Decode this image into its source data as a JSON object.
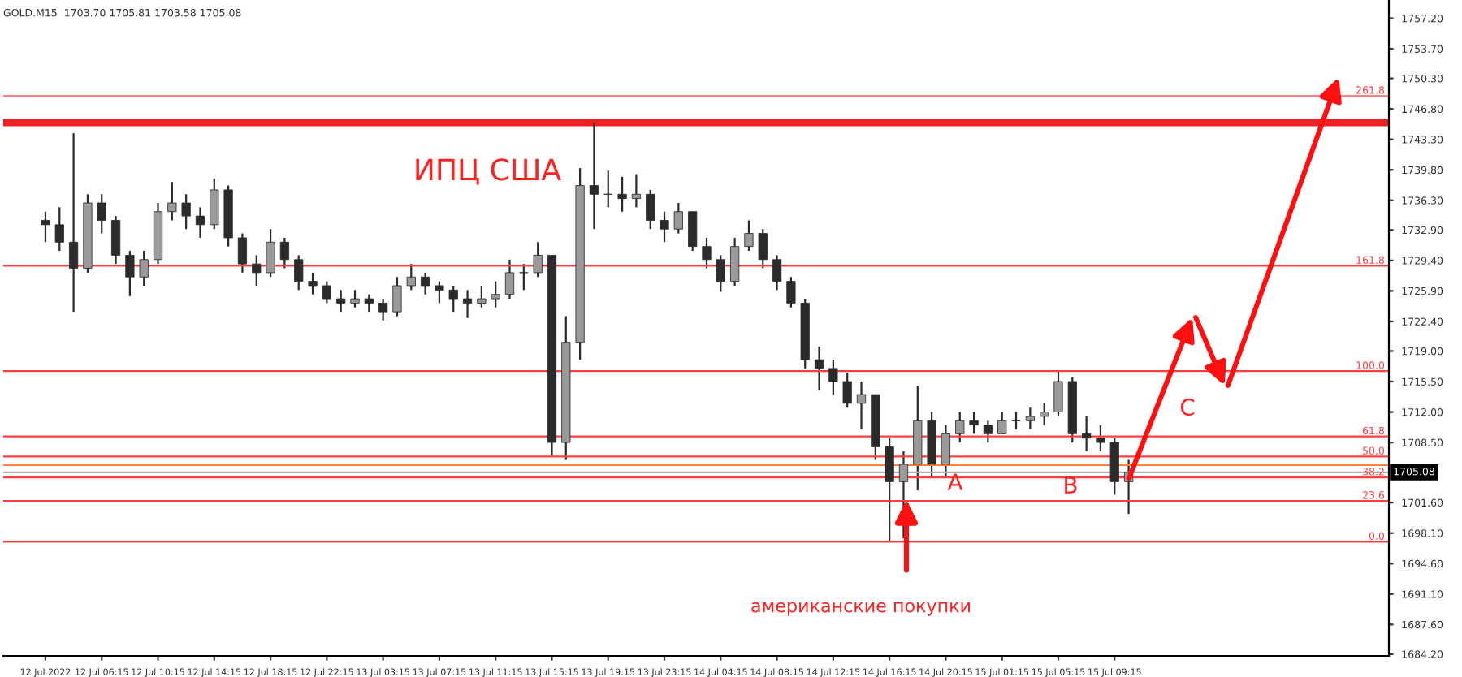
{
  "chart_data": {
    "type": "candlestick",
    "title": "GOLD.M15  1703.70 1705.81 1703.58 1705.08",
    "categories": [
      "12 Jul 2022",
      null,
      null,
      null,
      "12 Jul 06:15",
      null,
      null,
      null,
      "12 Jul 10:15",
      null,
      null,
      null,
      "12 Jul 14:15",
      null,
      null,
      null,
      "12 Jul 18:15",
      null,
      null,
      null,
      "12 Jul 22:15",
      null,
      null,
      null,
      "13 Jul 03:15",
      null,
      null,
      null,
      "13 Jul 07:15",
      null,
      null,
      null,
      "13 Jul 11:15",
      null,
      null,
      null,
      "13 Jul 15:15",
      null,
      null,
      null,
      "13 Jul 19:15",
      null,
      null,
      null,
      "13 Jul 23:15",
      null,
      null,
      null,
      "14 Jul 04:15",
      null,
      null,
      null,
      "14 Jul 08:15",
      null,
      null,
      null,
      "14 Jul 12:15",
      null,
      null,
      null,
      "14 Jul 16:15",
      null,
      null,
      null,
      "14 Jul 20:15",
      null,
      null,
      null,
      "15 Jul 01:15",
      null,
      null,
      null,
      "15 Jul 05:15",
      null,
      null,
      null,
      "15 Jul 09:15",
      null,
      null,
      null,
      null,
      null,
      null,
      null,
      null,
      null,
      null,
      null,
      null,
      null,
      null,
      null,
      null,
      null,
      null,
      null
    ],
    "color": "#2b2b2b",
    "ohlc": [
      [
        1734,
        1735,
        1731.5,
        1733.5
      ],
      [
        1733.5,
        1735.5,
        1730.5,
        1731.5
      ],
      [
        1731.5,
        1744,
        1723.5,
        1728.5
      ],
      [
        1728.5,
        1737,
        1728,
        1736
      ],
      [
        1736,
        1737,
        1732.5,
        1734
      ],
      [
        1734,
        1734.5,
        1729,
        1730
      ],
      [
        1730,
        1730.5,
        1725.3,
        1727.5
      ],
      [
        1727.5,
        1730.5,
        1726.5,
        1729.5
      ],
      [
        1729.5,
        1736,
        1729,
        1735
      ],
      [
        1735,
        1738.4,
        1734,
        1736
      ],
      [
        1736,
        1737,
        1733,
        1734.5
      ],
      [
        1734.5,
        1735.5,
        1732,
        1733.5
      ],
      [
        1733.5,
        1738.8,
        1733,
        1737.5
      ],
      [
        1737.5,
        1738,
        1731,
        1732
      ],
      [
        1732,
        1732.5,
        1728,
        1729
      ],
      [
        1729,
        1730,
        1726.5,
        1728
      ],
      [
        1728,
        1733,
        1727.5,
        1731.5
      ],
      [
        1731.5,
        1732,
        1728.5,
        1729.5
      ],
      [
        1729.5,
        1730,
        1726,
        1727
      ],
      [
        1727,
        1728,
        1725.5,
        1726.5
      ],
      [
        1726.5,
        1727,
        1724.5,
        1725
      ],
      [
        1725,
        1726,
        1723.5,
        1724.5
      ],
      [
        1724.5,
        1726,
        1724,
        1725
      ],
      [
        1725,
        1725.5,
        1723.5,
        1724.5
      ],
      [
        1724.5,
        1725,
        1722.5,
        1723.5
      ],
      [
        1723.5,
        1727.5,
        1723,
        1726.5
      ],
      [
        1726.5,
        1729,
        1726,
        1727.5
      ],
      [
        1727.5,
        1728,
        1725.5,
        1726.5
      ],
      [
        1726.5,
        1727,
        1724.5,
        1726
      ],
      [
        1726,
        1726.5,
        1723.5,
        1725
      ],
      [
        1725,
        1726,
        1722.8,
        1724.5
      ],
      [
        1724.5,
        1726.5,
        1724,
        1725
      ],
      [
        1725,
        1727,
        1724,
        1725.5
      ],
      [
        1725.5,
        1729.5,
        1725,
        1728
      ],
      [
        1728,
        1729,
        1726,
        1728
      ],
      [
        1728,
        1731.5,
        1727.5,
        1730
      ],
      [
        1730,
        1730,
        1707,
        1708.5
      ],
      [
        1708.5,
        1723,
        1706.5,
        1720
      ],
      [
        1720,
        1740,
        1718,
        1738
      ],
      [
        1738,
        1745.2,
        1733,
        1737
      ],
      [
        1737,
        1739.7,
        1735.5,
        1737
      ],
      [
        1737,
        1739,
        1735,
        1736.5
      ],
      [
        1736.5,
        1739.3,
        1735.5,
        1737
      ],
      [
        1737,
        1737.5,
        1733,
        1734
      ],
      [
        1734,
        1735,
        1731.5,
        1733
      ],
      [
        1733,
        1736,
        1732.5,
        1735
      ],
      [
        1735,
        1735,
        1730.5,
        1731
      ],
      [
        1731,
        1732,
        1728.5,
        1729.5
      ],
      [
        1729.5,
        1730,
        1725.8,
        1727
      ],
      [
        1727,
        1732,
        1726.5,
        1731
      ],
      [
        1731,
        1734,
        1730.5,
        1732.5
      ],
      [
        1732.5,
        1733,
        1728.5,
        1729.5
      ],
      [
        1729.5,
        1730,
        1726,
        1727
      ],
      [
        1727,
        1727.5,
        1724,
        1724.5
      ],
      [
        1724.5,
        1725,
        1717,
        1718
      ],
      [
        1718,
        1719.5,
        1714.5,
        1717
      ],
      [
        1717,
        1718,
        1714,
        1715.5
      ],
      [
        1715.5,
        1716.5,
        1712.5,
        1713
      ],
      [
        1713,
        1715.5,
        1710,
        1714
      ],
      [
        1714,
        1714,
        1706.5,
        1708
      ],
      [
        1708,
        1709,
        1697.1,
        1704
      ],
      [
        1704,
        1707.5,
        1697.5,
        1706
      ],
      [
        1706,
        1715,
        1703,
        1711
      ],
      [
        1711,
        1712,
        1704.5,
        1706
      ],
      [
        1706,
        1710.5,
        1704.5,
        1709.5
      ],
      [
        1709.5,
        1712,
        1708.5,
        1711
      ],
      [
        1711,
        1712,
        1709.5,
        1710.5
      ],
      [
        1710.5,
        1711,
        1708.5,
        1709.5
      ],
      [
        1709.5,
        1712,
        1709.5,
        1711
      ],
      [
        1711,
        1712,
        1710,
        1711
      ],
      [
        1711,
        1712.5,
        1710,
        1711.5
      ],
      [
        1711.5,
        1713,
        1710.5,
        1712
      ],
      [
        1712,
        1716.7,
        1711.5,
        1715.5
      ],
      [
        1715.5,
        1716,
        1708.5,
        1709.5
      ],
      [
        1709.5,
        1711.5,
        1707.5,
        1709
      ],
      [
        1709,
        1710.5,
        1707.5,
        1708.5
      ],
      [
        1708.5,
        1709,
        1702.5,
        1704
      ],
      [
        1704,
        1706.5,
        1700.3,
        1705.08
      ],
      null,
      null,
      null,
      null,
      null,
      null,
      null,
      null,
      null,
      null,
      null,
      null,
      null,
      null,
      null,
      null,
      null,
      null
    ],
    "ylim": [
      1684.0,
      1759.3
    ],
    "yticks": [
      {
        "value": 1757.2,
        "label": "1757.20"
      },
      {
        "value": 1753.7,
        "label": "1753.70"
      },
      {
        "value": 1750.3,
        "label": "1750.30"
      },
      {
        "value": 1746.8,
        "label": "1746.80"
      },
      {
        "value": 1743.3,
        "label": "1743.30"
      },
      {
        "value": 1739.8,
        "label": "1739.80"
      },
      {
        "value": 1736.3,
        "label": "1736.30"
      },
      {
        "value": 1732.9,
        "label": "1732.90"
      },
      {
        "value": 1729.4,
        "label": "1729.40"
      },
      {
        "value": 1725.9,
        "label": "1725.90"
      },
      {
        "value": 1722.4,
        "label": "1722.40"
      },
      {
        "value": 1719.0,
        "label": "1719.00"
      },
      {
        "value": 1715.5,
        "label": "1715.50"
      },
      {
        "value": 1712.0,
        "label": "1712.00"
      },
      {
        "value": 1708.5,
        "label": "1708.50"
      },
      {
        "value": 1701.6,
        "label": "1701.60"
      },
      {
        "value": 1698.1,
        "label": "1698.10"
      },
      {
        "value": 1694.6,
        "label": "1694.60"
      },
      {
        "value": 1691.1,
        "label": "1691.10"
      },
      {
        "value": 1687.6,
        "label": "1687.60"
      },
      {
        "value": 1684.2,
        "label": "1684.20"
      }
    ],
    "ref_lines": [
      {
        "axis": "y",
        "value": 1697.1,
        "color": "#ff4040",
        "line_style": "solid"
      },
      {
        "axis": "y",
        "value": 1701.8,
        "color": "#ff4040",
        "line_style": "solid"
      },
      {
        "axis": "y",
        "value": 1704.5,
        "color": "#ff4040",
        "line_style": "solid"
      },
      {
        "axis": "y",
        "value": 1706.9,
        "color": "#ff4040",
        "line_style": "solid"
      },
      {
        "axis": "y",
        "value": 1709.2,
        "color": "#ff4040",
        "line_style": "solid"
      },
      {
        "axis": "y",
        "value": 1716.7,
        "color": "#ff4040",
        "line_style": "solid"
      },
      {
        "axis": "y",
        "value": 1728.8,
        "color": "#ff4040",
        "line_style": "solid"
      },
      {
        "axis": "y",
        "value": 1748.3,
        "color": "#ff8080",
        "line_style": "solid"
      },
      {
        "axis": "y",
        "value": 1705.9,
        "color": "#ff8040",
        "line_style": "solid"
      },
      {
        "axis": "y",
        "value": 1705.08,
        "label": "1705.08",
        "color": "#b0b0b0"
      }
    ],
    "bands": [
      {
        "axis": "y",
        "from": 1744.8,
        "to": 1745.6,
        "color": "#ee2020"
      }
    ],
    "annotations": [
      "ИПЦ США",
      "A",
      "B",
      "C",
      "американские покупки",
      {
        "text": "0.0",
        "y": 1697.1
      },
      {
        "text": "23.6",
        "y": 1701.8
      },
      {
        "text": "38.2",
        "y": 1704.5
      },
      {
        "text": "50.0",
        "y": 1706.9
      },
      {
        "text": "61.8",
        "y": 1709.2
      },
      {
        "text": "100.0",
        "y": 1716.7
      },
      {
        "text": "161.8",
        "y": 1728.8
      },
      {
        "text": "261.8",
        "y": 1748.3
      }
    ]
  }
}
